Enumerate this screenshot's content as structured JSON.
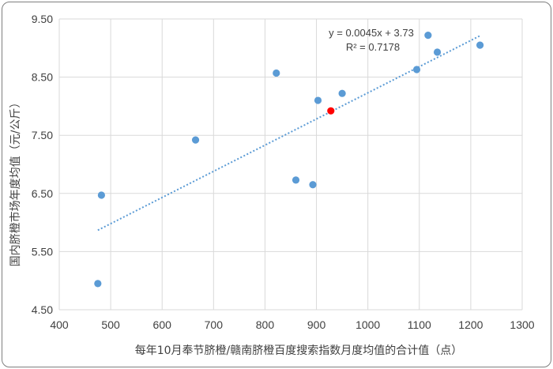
{
  "chart_data": {
    "type": "scatter",
    "title": "",
    "xlabel": "每年10月奉节脐橙/赣南脐橙百度搜索指数月度均值的合计值（点）",
    "ylabel": "国内脐橙市场年度均值（元/公斤）",
    "xlim": [
      400,
      1300
    ],
    "ylim": [
      4.5,
      9.5
    ],
    "x_ticks": [
      "400",
      "500",
      "600",
      "700",
      "800",
      "900",
      "1000",
      "1100",
      "1200",
      "1300"
    ],
    "y_ticks": [
      "4.50",
      "5.50",
      "6.50",
      "7.50",
      "8.50",
      "9.50"
    ],
    "grid": true,
    "points": [
      {
        "x": 475,
        "y": 4.95
      },
      {
        "x": 482,
        "y": 6.47
      },
      {
        "x": 665,
        "y": 7.42
      },
      {
        "x": 822,
        "y": 8.57
      },
      {
        "x": 860,
        "y": 6.73
      },
      {
        "x": 893,
        "y": 6.65
      },
      {
        "x": 903,
        "y": 8.1
      },
      {
        "x": 950,
        "y": 8.22
      },
      {
        "x": 1095,
        "y": 8.63
      },
      {
        "x": 1117,
        "y": 9.22
      },
      {
        "x": 1135,
        "y": 8.93
      },
      {
        "x": 1218,
        "y": 9.05
      }
    ],
    "highlight_point": {
      "x": 928,
      "y": 7.92
    },
    "trendline": {
      "slope": 0.0045,
      "intercept": 3.73,
      "x_range": [
        475,
        1218
      ]
    },
    "equation_lines": [
      "y = 0.0045x + 3.73",
      "R² = 0.7178"
    ],
    "colors": {
      "point": "#5b9bd5",
      "highlight": "#ff0000",
      "trend": "#5b9bd5",
      "grid": "#d9d9d9"
    }
  }
}
